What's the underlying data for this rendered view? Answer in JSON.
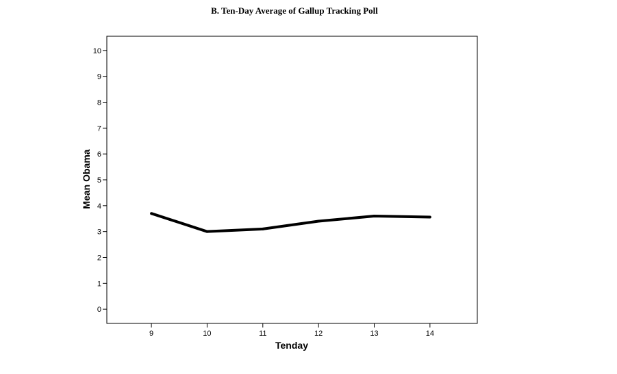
{
  "chart_data": {
    "type": "line",
    "title": "B. Ten-Day Average of Gallup Tracking Poll",
    "xlabel": "Tenday",
    "ylabel": "Mean Obama",
    "x": [
      9,
      10,
      11,
      12,
      13,
      14
    ],
    "y": [
      3.7,
      3.0,
      3.1,
      3.4,
      3.6,
      3.56
    ],
    "xlim": [
      8.2,
      14.85
    ],
    "ylim": [
      -0.55,
      10.55
    ],
    "xticks": [
      "9",
      "10",
      "11",
      "12",
      "13",
      "14"
    ],
    "yticks": [
      "0",
      "1",
      "2",
      "3",
      "4",
      "5",
      "6",
      "7",
      "8",
      "9",
      "10"
    ],
    "line_color": "#000000",
    "grid": false,
    "legend": "none"
  }
}
